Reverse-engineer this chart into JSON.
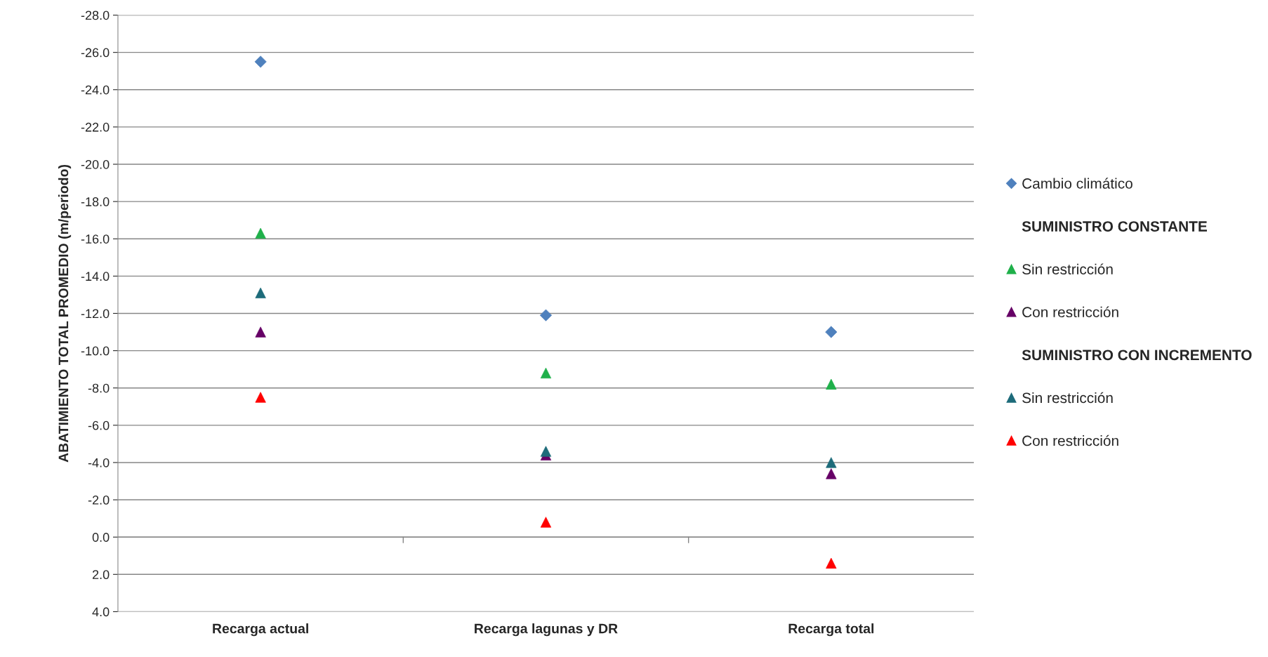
{
  "chart_data": {
    "type": "scatter",
    "ylabel": "ABATIMIENTO TOTAL PROMEDIO (m/periodo)",
    "categories": [
      "Recarga actual",
      "Recarga lagunas y DR",
      "Recarga total"
    ],
    "series": [
      {
        "name": "Cambio climático",
        "color": "#4f81bd",
        "marker": "diamond",
        "values": [
          -25.5,
          -11.9,
          -11.0
        ]
      },
      {
        "name": "Sin restricción",
        "color": "#1fb04a",
        "marker": "triangle",
        "values": [
          -16.3,
          -8.8,
          -8.2
        ]
      },
      {
        "name": "Con restricción",
        "color": "#660066",
        "marker": "triangle",
        "values": [
          -11.0,
          -4.4,
          -3.4
        ]
      },
      {
        "name": "Sin restricción",
        "color": "#1d6b7a",
        "marker": "triangle",
        "values": [
          -13.1,
          -4.6,
          -4.0
        ]
      },
      {
        "name": "Con restricción",
        "color": "#ff0000",
        "marker": "triangle",
        "values": [
          -7.5,
          -0.8,
          1.4
        ]
      }
    ],
    "annotations": [
      "SUMINISTRO CONSTANTE",
      "SUMINISTRO CON INCREMENTO"
    ],
    "ylim": [
      4,
      -28
    ],
    "yticks": [
      {
        "value": -28,
        "label": "-28.0"
      },
      {
        "value": -26,
        "label": "-26.0"
      },
      {
        "value": -24,
        "label": "-24.0"
      },
      {
        "value": -22,
        "label": "-22.0"
      },
      {
        "value": -20,
        "label": "-20.0"
      },
      {
        "value": -18,
        "label": "-18.0"
      },
      {
        "value": -16,
        "label": "-16.0"
      },
      {
        "value": -14,
        "label": "-14.0"
      },
      {
        "value": -12,
        "label": "-12.0"
      },
      {
        "value": -10,
        "label": "-10.0"
      },
      {
        "value": -8,
        "label": "-8.0"
      },
      {
        "value": -6,
        "label": "-6.0"
      },
      {
        "value": -4,
        "label": "-4.0"
      },
      {
        "value": -2,
        "label": "-2.0"
      },
      {
        "value": 0,
        "label": "0.0"
      },
      {
        "value": 2,
        "label": "2.0"
      },
      {
        "value": 4,
        "label": "4.0"
      }
    ],
    "grid": "y",
    "legend": "right"
  }
}
